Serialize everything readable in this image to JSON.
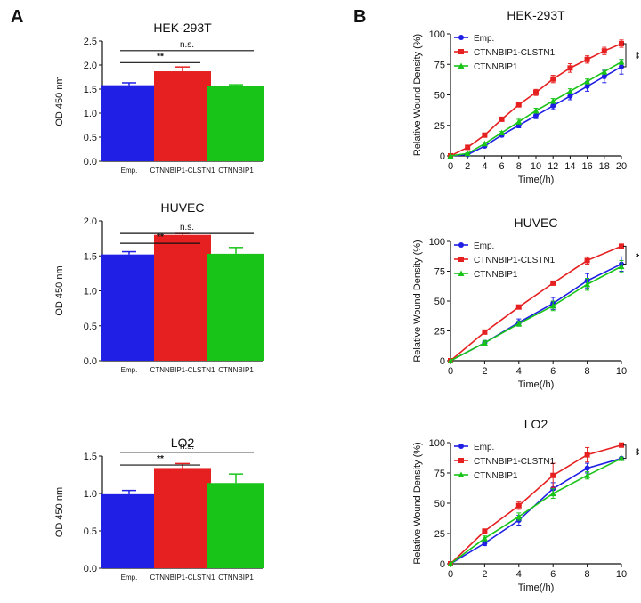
{
  "panels": {
    "a": "A",
    "b": "B"
  },
  "colors": {
    "emp": "#1f1fe6",
    "fusion": "#e62020",
    "ctnnbip1": "#19c419"
  },
  "chart_data": [
    {
      "type": "bar",
      "title": "HEK-293T",
      "ylabel": "OD 450 nm",
      "categories": [
        "Emp.",
        "CTNNBIP1-CLSTN1",
        "CTNNBIP1"
      ],
      "values": [
        1.58,
        1.87,
        1.56
      ],
      "errors": [
        0.05,
        0.09,
        0.03
      ],
      "ylim": [
        0,
        2.5
      ],
      "yticks": [
        "0.0",
        "0.5",
        "1.0",
        "1.5",
        "2.0",
        "2.5"
      ],
      "annotations": [
        {
          "text": "**",
          "from": 0,
          "to": 1,
          "y": 2.05
        },
        {
          "text": "n.s.",
          "from": 0,
          "to": 2,
          "y": 2.3
        }
      ]
    },
    {
      "type": "bar",
      "title": "HUVEC",
      "ylabel": "OD 450 nm",
      "categories": [
        "Emp.",
        "CTNNBIP1-CLSTN1",
        "CTNNBIP1"
      ],
      "values": [
        1.52,
        1.8,
        1.53
      ],
      "errors": [
        0.04,
        0.02,
        0.09
      ],
      "ylim": [
        0,
        2.0
      ],
      "yticks": [
        "0.0",
        "0.5",
        "1.0",
        "1.5",
        "2.0"
      ],
      "annotations": [
        {
          "text": "**",
          "from": 0,
          "to": 1,
          "y": 1.68
        },
        {
          "text": "n.s.",
          "from": 0,
          "to": 2,
          "y": 1.82
        }
      ]
    },
    {
      "type": "bar",
      "title": "LO2",
      "ylabel": "OD 450 nm",
      "categories": [
        "Emp.",
        "CTNNBIP1-CLSTN1",
        "CTNNBIP1"
      ],
      "values": [
        0.99,
        1.34,
        1.14
      ],
      "errors": [
        0.05,
        0.06,
        0.12
      ],
      "ylim": [
        0,
        1.5
      ],
      "yticks": [
        "0.0",
        "0.5",
        "1.0",
        "1.5"
      ],
      "annotations": [
        {
          "text": "**",
          "from": 0,
          "to": 1,
          "y": 1.38
        },
        {
          "text": "n.s.",
          "from": 0,
          "to": 2,
          "y": 1.55
        }
      ]
    },
    {
      "type": "line",
      "title": "HEK-293T",
      "xlabel": "Time(/h)",
      "ylabel": "Relative Wound Density (%)",
      "x": [
        0,
        2,
        4,
        6,
        8,
        10,
        12,
        14,
        16,
        18,
        20
      ],
      "xticks": [
        "0",
        "2",
        "4",
        "6",
        "8",
        "10",
        "12",
        "14",
        "16",
        "18",
        "20"
      ],
      "xlim": [
        0,
        20
      ],
      "ylim": [
        0,
        100
      ],
      "yticks": [
        "0",
        "25",
        "50",
        "75",
        "100"
      ],
      "series": [
        {
          "name": "Emp.",
          "values": [
            0,
            1,
            8,
            17,
            25,
            33,
            41,
            49,
            57,
            65,
            73
          ],
          "errors": [
            0,
            0.5,
            1,
            1.5,
            2,
            2.5,
            3,
            3,
            4,
            5,
            6
          ]
        },
        {
          "name": "CTNNBIP1-CLSTN1",
          "values": [
            0,
            7,
            17,
            30,
            42,
            52,
            63,
            72,
            79,
            86,
            92
          ],
          "errors": [
            0,
            1,
            1,
            1.5,
            2,
            2.5,
            3,
            3.5,
            3,
            3,
            3
          ]
        },
        {
          "name": "CTNNBIP1",
          "values": [
            0,
            2,
            10,
            19,
            28,
            37,
            45,
            53,
            61,
            69,
            77
          ],
          "errors": [
            0,
            0.5,
            1,
            1,
            2,
            2,
            2,
            2,
            2,
            2,
            2
          ]
        }
      ],
      "significance": "**"
    },
    {
      "type": "line",
      "title": "HUVEC",
      "xlabel": "Time(/h)",
      "ylabel": "Relative Wound Density (%)",
      "x": [
        0,
        2,
        4,
        6,
        8,
        10
      ],
      "xticks": [
        "0",
        "2",
        "4",
        "6",
        "8",
        "10"
      ],
      "xlim": [
        0,
        10
      ],
      "ylim": [
        0,
        100
      ],
      "yticks": [
        "0",
        "25",
        "50",
        "75",
        "100"
      ],
      "series": [
        {
          "name": "Emp.",
          "values": [
            0,
            15,
            32,
            48,
            67,
            81
          ],
          "errors": [
            0,
            2,
            3,
            5,
            6,
            6
          ]
        },
        {
          "name": "CTNNBIP1-CLSTN1",
          "values": [
            0,
            24,
            45,
            65,
            84,
            96
          ],
          "errors": [
            0,
            1,
            1,
            1,
            3,
            1
          ]
        },
        {
          "name": "CTNNBIP1",
          "values": [
            0,
            15,
            31,
            46,
            64,
            79
          ],
          "errors": [
            0,
            2,
            2,
            4,
            5,
            5
          ]
        }
      ],
      "significance": "*"
    },
    {
      "type": "line",
      "title": "LO2",
      "xlabel": "Time(/h)",
      "ylabel": "Relative Wound Density (%)",
      "x": [
        0,
        2,
        4,
        6,
        8,
        10
      ],
      "xticks": [
        "0",
        "2",
        "4",
        "6",
        "8",
        "10"
      ],
      "xlim": [
        0,
        10
      ],
      "ylim": [
        0,
        100
      ],
      "yticks": [
        "0",
        "25",
        "50",
        "75",
        "100"
      ],
      "series": [
        {
          "name": "Emp.",
          "values": [
            0,
            17,
            36,
            62,
            79,
            87
          ],
          "errors": [
            0,
            2,
            4,
            5,
            4,
            1
          ]
        },
        {
          "name": "CTNNBIP1-CLSTN1",
          "values": [
            0,
            27,
            48,
            73,
            90,
            98
          ],
          "errors": [
            0,
            1,
            3,
            10,
            6,
            1
          ]
        },
        {
          "name": "CTNNBIP1",
          "values": [
            0,
            21,
            39,
            58,
            73,
            87
          ],
          "errors": [
            0,
            2,
            3,
            4,
            3,
            1
          ]
        }
      ],
      "significance": "**"
    }
  ]
}
